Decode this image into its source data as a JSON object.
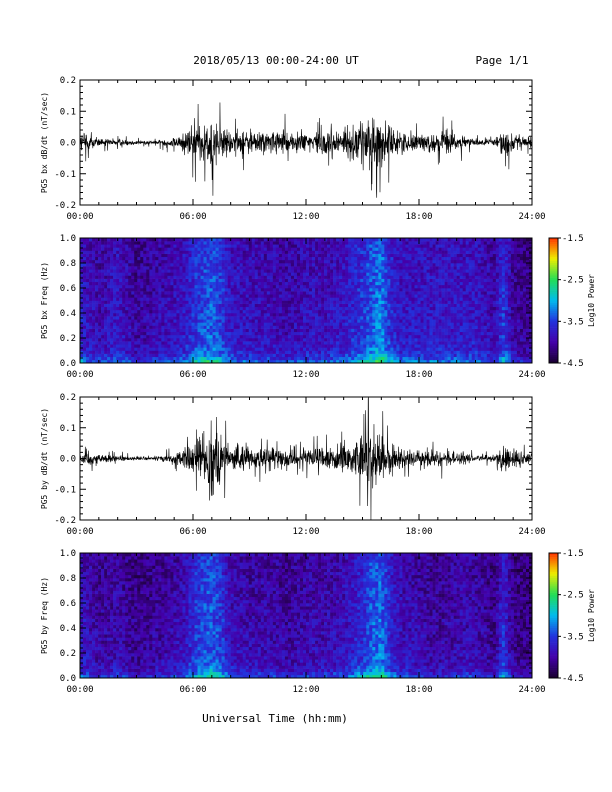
{
  "header": {
    "title": "2018/05/13  00:00-24:00 UT",
    "page": "Page 1/1"
  },
  "xlabel": "Universal Time (hh:mm)",
  "colors": {
    "trace": "#000000",
    "colormap": [
      "#1a0030",
      "#4400aa",
      "#2233dd",
      "#00bbee",
      "#22dd55",
      "#eeee00",
      "#ff3300"
    ]
  },
  "chart_data": [
    {
      "type": "line",
      "ylabel": "PG5 bx dB/dt (nT/sec)",
      "xlim": [
        0,
        24
      ],
      "ylim": [
        -0.2,
        0.2
      ],
      "xticks": [
        0,
        6,
        12,
        18,
        24
      ],
      "xticklabels": [
        "00:00",
        "06:00",
        "12:00",
        "18:00",
        "24:00"
      ],
      "yticks": [
        -0.2,
        -0.1,
        0.0,
        0.1,
        0.2
      ],
      "yticklabels": [
        "-0.2",
        "-0.1",
        "0.0",
        "0.1",
        "0.2"
      ],
      "envelope": {
        "hours": [
          0,
          0.3,
          0.6,
          1,
          2,
          3,
          4,
          5,
          5.5,
          6,
          6.5,
          7,
          7.3,
          7.7,
          8,
          9,
          10,
          11,
          12,
          13,
          14,
          15,
          15.5,
          16,
          16.5,
          17,
          18,
          19,
          19.5,
          20,
          21,
          22,
          22.5,
          23,
          23.5,
          24
        ],
        "amplitude": [
          0.05,
          0.07,
          0.04,
          0.025,
          0.018,
          0.012,
          0.01,
          0.03,
          0.06,
          0.09,
          0.12,
          0.2,
          0.14,
          0.09,
          0.07,
          0.08,
          0.06,
          0.07,
          0.06,
          0.07,
          0.08,
          0.12,
          0.2,
          0.12,
          0.09,
          0.06,
          0.05,
          0.05,
          0.08,
          0.05,
          0.02,
          0.015,
          0.09,
          0.05,
          0.04,
          0.03
        ]
      }
    },
    {
      "type": "heatmap",
      "ylabel": "PG5 bx Freq (Hz)",
      "xlim": [
        0,
        24
      ],
      "ylim": [
        0,
        1.0
      ],
      "xticks": [
        0,
        6,
        12,
        18,
        24
      ],
      "xticklabels": [
        "00:00",
        "06:00",
        "12:00",
        "18:00",
        "24:00"
      ],
      "yticks": [
        0.0,
        0.2,
        0.4,
        0.6,
        0.8,
        1.0
      ],
      "yticklabels": [
        "0.0",
        "0.2",
        "0.4",
        "0.6",
        "0.8",
        "1.0"
      ],
      "colorbar": {
        "label": "Log10 Power",
        "range": [
          -4.5,
          -1.5
        ],
        "ticks": [
          -1.5,
          -2.5,
          -3.5,
          -4.5
        ],
        "ticklabels": [
          "-1.5",
          "-2.5",
          "-3.5",
          "-4.5"
        ]
      },
      "activity": {
        "hours": [
          0,
          1,
          2,
          3,
          4,
          5,
          5.5,
          6,
          6.5,
          7,
          7.5,
          8,
          9,
          10,
          11,
          12,
          13,
          14,
          15,
          15.5,
          16,
          16.5,
          17,
          18,
          19,
          20,
          21,
          22,
          22.5,
          23,
          24
        ],
        "level": [
          0.65,
          0.5,
          0.6,
          0.45,
          0.5,
          0.55,
          0.6,
          0.7,
          0.8,
          0.85,
          0.75,
          0.6,
          0.55,
          0.55,
          0.5,
          0.55,
          0.55,
          0.6,
          0.75,
          0.85,
          0.95,
          0.7,
          0.6,
          0.6,
          0.6,
          0.6,
          0.6,
          0.5,
          0.75,
          0.45,
          0.4
        ]
      }
    },
    {
      "type": "line",
      "ylabel": "PG5 by dB/dt (nT/sec)",
      "xlim": [
        0,
        24
      ],
      "ylim": [
        -0.2,
        0.2
      ],
      "xticks": [
        0,
        6,
        12,
        18,
        24
      ],
      "xticklabels": [
        "00:00",
        "06:00",
        "12:00",
        "18:00",
        "24:00"
      ],
      "yticks": [
        -0.2,
        -0.1,
        0.0,
        0.1,
        0.2
      ],
      "yticklabels": [
        "-0.2",
        "-0.1",
        "0.0",
        "0.1",
        "0.2"
      ],
      "envelope": {
        "hours": [
          0,
          0.3,
          0.6,
          1,
          2,
          3,
          4,
          5,
          5.5,
          6,
          6.5,
          7,
          7.3,
          7.7,
          8,
          9,
          10,
          11,
          12,
          13,
          14,
          15,
          15.5,
          16,
          16.5,
          17,
          18,
          19,
          20,
          21,
          22,
          22.5,
          23,
          23.5,
          24
        ],
        "amplitude": [
          0.04,
          0.06,
          0.035,
          0.025,
          0.02,
          0.01,
          0.01,
          0.03,
          0.06,
          0.09,
          0.13,
          0.2,
          0.15,
          0.1,
          0.08,
          0.07,
          0.06,
          0.06,
          0.05,
          0.06,
          0.08,
          0.12,
          0.2,
          0.13,
          0.08,
          0.06,
          0.04,
          0.05,
          0.04,
          0.02,
          0.015,
          0.09,
          0.06,
          0.04,
          0.03
        ]
      }
    },
    {
      "type": "heatmap",
      "ylabel": "PG5 by Freq (Hz)",
      "xlim": [
        0,
        24
      ],
      "ylim": [
        0,
        1.0
      ],
      "xticks": [
        0,
        6,
        12,
        18,
        24
      ],
      "xticklabels": [
        "00:00",
        "06:00",
        "12:00",
        "18:00",
        "24:00"
      ],
      "yticks": [
        0.0,
        0.2,
        0.4,
        0.6,
        0.8,
        1.0
      ],
      "yticklabels": [
        "0.0",
        "0.2",
        "0.4",
        "0.6",
        "0.8",
        "1.0"
      ],
      "colorbar": {
        "label": "Log10 Power",
        "range": [
          -4.5,
          -1.5
        ],
        "ticks": [
          -1.5,
          -2.5,
          -3.5,
          -4.5
        ],
        "ticklabels": [
          "-1.5",
          "-2.5",
          "-3.5",
          "-4.5"
        ]
      },
      "activity": {
        "hours": [
          0,
          1,
          2,
          3,
          4,
          5,
          5.5,
          6,
          6.5,
          7,
          7.5,
          8,
          9,
          10,
          11,
          12,
          13,
          14,
          15,
          15.5,
          16,
          16.5,
          17,
          18,
          19,
          20,
          21,
          22,
          22.5,
          23,
          24
        ],
        "level": [
          0.6,
          0.45,
          0.5,
          0.4,
          0.45,
          0.5,
          0.55,
          0.7,
          0.8,
          0.85,
          0.75,
          0.55,
          0.5,
          0.5,
          0.45,
          0.5,
          0.5,
          0.55,
          0.7,
          0.85,
          0.9,
          0.65,
          0.55,
          0.5,
          0.45,
          0.5,
          0.5,
          0.4,
          0.7,
          0.4,
          0.35
        ]
      }
    }
  ]
}
